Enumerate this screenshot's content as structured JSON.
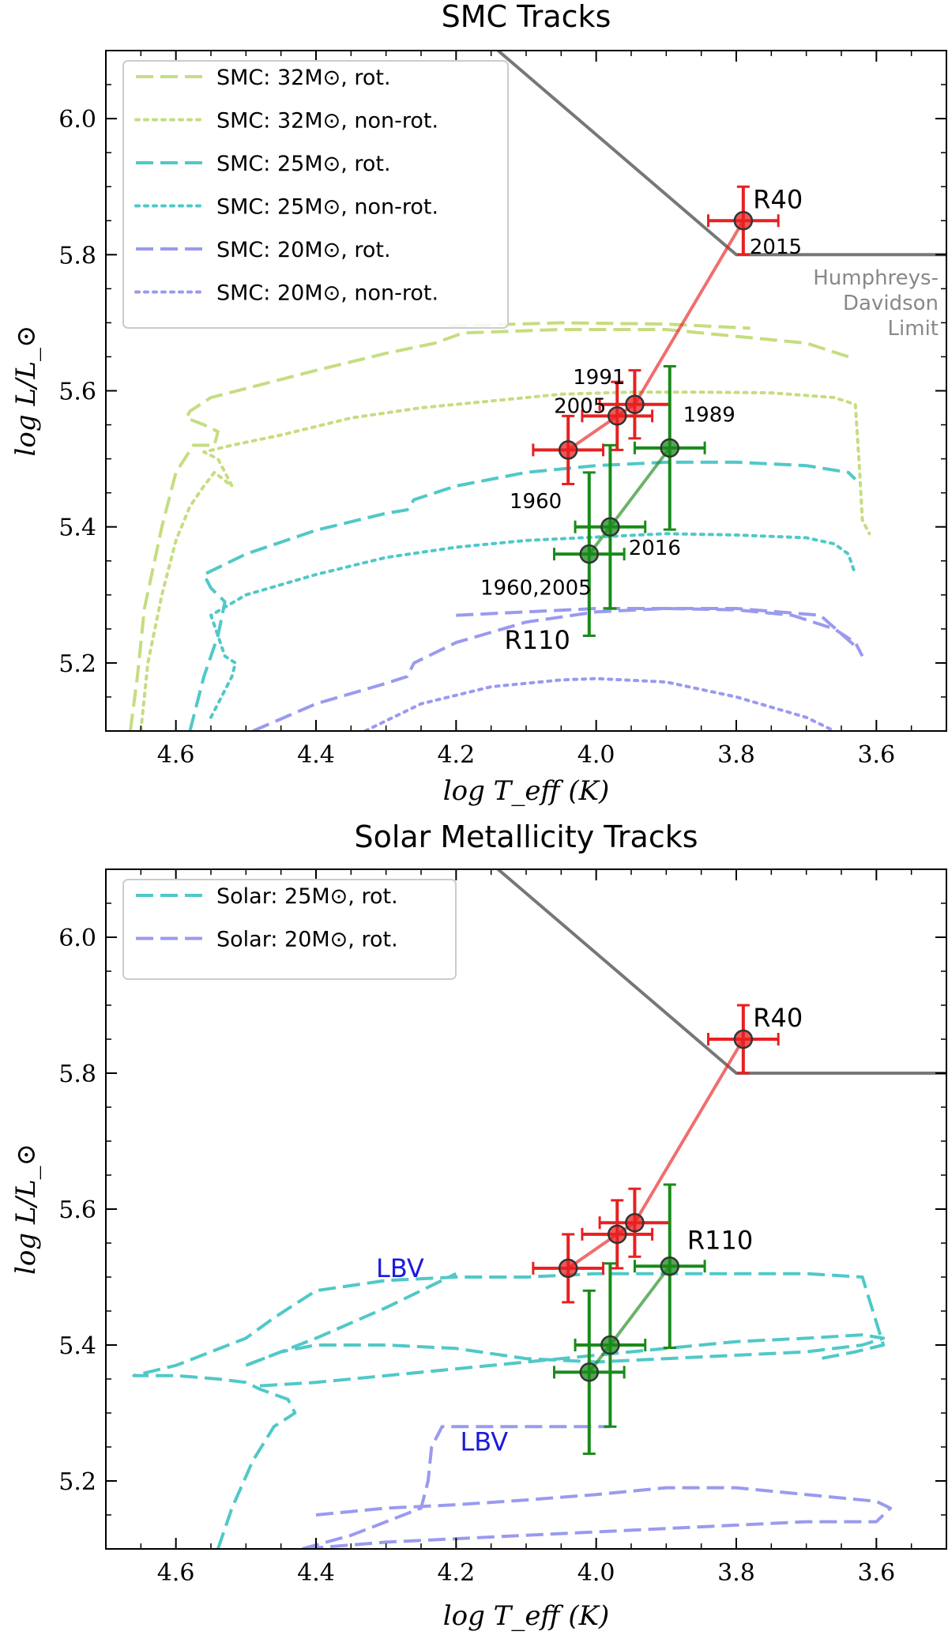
{
  "chart_data": [
    {
      "type": "line",
      "title": "SMC Tracks",
      "xlabel": "log T_eff (K)",
      "ylabel": "log L/L_⊙",
      "xlim": [
        4.7,
        3.5
      ],
      "ylim": [
        5.1,
        6.1
      ],
      "x_ticks": [
        "4.6",
        "4.4",
        "4.2",
        "4.0",
        "3.8",
        "3.6"
      ],
      "y_ticks": [
        "5.2",
        "5.4",
        "5.6",
        "5.8",
        "6.0"
      ],
      "legend": {
        "position": "top-left",
        "entries": [
          {
            "label": "SMC: 32M⊙, rot.",
            "color": "#c5dd80",
            "dash": "dashed"
          },
          {
            "label": "SMC: 32M⊙, non-rot.",
            "color": "#c5dd80",
            "dash": "dotted"
          },
          {
            "label": "SMC: 25M⊙, rot.",
            "color": "#50c8c8",
            "dash": "dashed"
          },
          {
            "label": "SMC: 25M⊙, non-rot.",
            "color": "#50c8c8",
            "dash": "dotted"
          },
          {
            "label": "SMC: 20M⊙, rot.",
            "color": "#9a9af0",
            "dash": "dashed"
          },
          {
            "label": "SMC: 20M⊙, non-rot.",
            "color": "#9a9af0",
            "dash": "dotted"
          }
        ]
      },
      "hd_limit": {
        "label_lines": [
          "Humphreys-",
          "Davidson",
          "Limit"
        ],
        "x": [
          4.14,
          3.8,
          3.5
        ],
        "y": [
          6.1,
          5.8,
          5.8
        ],
        "color": "#777777"
      },
      "tracks": [
        {
          "name": "SMC 32 rot",
          "color": "#c5dd80",
          "dash": "dashed",
          "x": [
            4.665,
            4.655,
            4.645,
            4.62,
            4.6,
            4.575,
            4.545,
            4.54,
            4.56,
            4.585,
            4.58,
            4.55,
            4.4,
            4.3,
            4.23,
            4.19,
            4.05,
            3.9,
            3.8,
            3.7,
            3.64
          ],
          "y": [
            5.1,
            5.18,
            5.28,
            5.4,
            5.48,
            5.52,
            5.52,
            5.54,
            5.55,
            5.56,
            5.57,
            5.59,
            5.63,
            5.655,
            5.67,
            5.685,
            5.69,
            5.69,
            5.68,
            5.67,
            5.65
          ]
        },
        {
          "name": "SMC 32 rot (upper)",
          "color": "#c5dd80",
          "dash": "dashed",
          "x": [
            4.21,
            4.05,
            3.9,
            3.78
          ],
          "y": [
            5.695,
            5.7,
            5.698,
            5.692
          ]
        },
        {
          "name": "SMC 32 non-rot",
          "color": "#c5dd80",
          "dash": "dotted",
          "x": [
            4.65,
            4.64,
            4.62,
            4.6,
            4.58,
            4.56,
            4.545,
            4.52,
            4.54,
            4.56,
            4.52,
            4.45,
            4.35,
            4.25,
            4.15,
            4.05,
            3.95,
            3.85,
            3.75,
            3.66,
            3.63,
            3.625,
            3.62,
            3.61
          ],
          "y": [
            5.1,
            5.2,
            5.3,
            5.38,
            5.43,
            5.46,
            5.48,
            5.46,
            5.5,
            5.51,
            5.52,
            5.535,
            5.56,
            5.575,
            5.585,
            5.595,
            5.598,
            5.598,
            5.597,
            5.59,
            5.58,
            5.5,
            5.41,
            5.39
          ]
        },
        {
          "name": "SMC 25 rot",
          "color": "#50c8c8",
          "dash": "dashed",
          "x": [
            4.58,
            4.56,
            4.54,
            4.53,
            4.55,
            4.56,
            4.5,
            4.4,
            4.3,
            4.27,
            4.26,
            4.2,
            4.1,
            4.0,
            3.9,
            3.8,
            3.7,
            3.64,
            3.63
          ],
          "y": [
            5.1,
            5.18,
            5.24,
            5.29,
            5.31,
            5.33,
            5.36,
            5.395,
            5.42,
            5.425,
            5.44,
            5.46,
            5.48,
            5.49,
            5.495,
            5.495,
            5.49,
            5.48,
            5.47
          ]
        },
        {
          "name": "SMC 25 non-rot",
          "color": "#50c8c8",
          "dash": "dotted",
          "x": [
            4.55,
            4.52,
            4.515,
            4.53,
            4.54,
            4.55,
            4.5,
            4.4,
            4.3,
            4.2,
            4.1,
            4.0,
            3.9,
            3.8,
            3.7,
            3.66,
            3.64,
            3.63
          ],
          "y": [
            5.12,
            5.18,
            5.2,
            5.21,
            5.24,
            5.27,
            5.3,
            5.33,
            5.355,
            5.37,
            5.38,
            5.385,
            5.39,
            5.388,
            5.384,
            5.375,
            5.36,
            5.33
          ]
        },
        {
          "name": "SMC 20 rot",
          "color": "#9a9af0",
          "dash": "dashed",
          "x": [
            4.49,
            4.4,
            4.3,
            4.27,
            4.26,
            4.2,
            4.1,
            4.0,
            3.9,
            3.8,
            3.72,
            3.66,
            3.63,
            3.62
          ],
          "y": [
            5.1,
            5.14,
            5.17,
            5.18,
            5.2,
            5.23,
            5.26,
            5.275,
            5.28,
            5.278,
            5.27,
            5.25,
            5.23,
            5.21
          ]
        },
        {
          "name": "SMC 20 rot (upper)",
          "color": "#9a9af0",
          "dash": "dashed",
          "x": [
            4.2,
            4.0,
            3.8,
            3.68,
            3.625
          ],
          "y": [
            5.27,
            5.28,
            5.28,
            5.27,
            5.22
          ]
        },
        {
          "name": "SMC 20 non-rot",
          "color": "#9a9af0",
          "dash": "dotted",
          "x": [
            4.33,
            4.25,
            4.15,
            4.05,
            4.0,
            3.9,
            3.8,
            3.7,
            3.66
          ],
          "y": [
            5.1,
            5.14,
            5.165,
            5.175,
            5.177,
            5.172,
            5.15,
            5.12,
            5.1
          ]
        }
      ],
      "stars": [
        {
          "name": "R40",
          "color": "#e82020",
          "label": "R40",
          "epochs": [
            "1960",
            "2005",
            "1991",
            "2015"
          ],
          "x": [
            4.04,
            3.97,
            3.945,
            3.79
          ],
          "y": [
            5.513,
            5.563,
            5.58,
            5.85
          ],
          "xerr": [
            0.05,
            0.05,
            0.05,
            0.05
          ],
          "yerr": [
            0.05,
            0.05,
            0.05,
            0.05
          ]
        },
        {
          "name": "R110",
          "color": "#1a8a1a",
          "label": "R110",
          "epochs": [
            "1960,2005",
            "2016",
            "1989"
          ],
          "x": [
            4.01,
            3.98,
            3.895
          ],
          "y": [
            5.36,
            5.4,
            5.516
          ],
          "xerr": [
            0.05,
            0.05,
            0.05
          ],
          "yerr": [
            0.12,
            0.12,
            0.12
          ]
        }
      ]
    },
    {
      "type": "line",
      "title": "Solar Metallicity Tracks",
      "xlabel": "log T_eff (K)",
      "ylabel": "log L/L_⊙",
      "xlim": [
        4.7,
        3.5
      ],
      "ylim": [
        5.1,
        6.1
      ],
      "x_ticks": [
        "4.6",
        "4.4",
        "4.2",
        "4.0",
        "3.8",
        "3.6"
      ],
      "y_ticks": [
        "5.2",
        "5.4",
        "5.6",
        "5.8",
        "6.0"
      ],
      "legend": {
        "position": "top-left",
        "entries": [
          {
            "label": "Solar: 25M⊙, rot.",
            "color": "#50c8c8",
            "dash": "dashed"
          },
          {
            "label": "Solar: 20M⊙, rot.",
            "color": "#9a9af0",
            "dash": "dashed"
          }
        ]
      },
      "hd_limit": {
        "x": [
          4.14,
          3.8,
          3.5
        ],
        "y": [
          6.1,
          5.8,
          5.8
        ],
        "color": "#777777"
      },
      "annotations": [
        {
          "text": "LBV",
          "x": 4.28,
          "y": 5.5,
          "color": "#1a1adb"
        },
        {
          "text": "LBV",
          "x": 4.16,
          "y": 5.245,
          "color": "#1a1adb"
        }
      ],
      "tracks": [
        {
          "name": "Solar 25 rot",
          "color": "#50c8c8",
          "dash": "dashed",
          "x": [
            4.54,
            4.52,
            4.49,
            4.46,
            4.43,
            4.44,
            4.48,
            4.5,
            4.54,
            4.6,
            4.66,
            4.6,
            4.5,
            4.46,
            4.43,
            4.4,
            4.3,
            4.2,
            4.1,
            4.0,
            3.9,
            3.8,
            3.7,
            3.62,
            3.59,
            3.63,
            3.68
          ],
          "y": [
            5.1,
            5.16,
            5.23,
            5.28,
            5.3,
            5.32,
            5.335,
            5.345,
            5.35,
            5.355,
            5.355,
            5.37,
            5.41,
            5.44,
            5.46,
            5.48,
            5.495,
            5.5,
            5.5,
            5.505,
            5.505,
            5.505,
            5.505,
            5.5,
            5.4,
            5.39,
            5.38
          ]
        },
        {
          "name": "Solar 25 rot (loop)",
          "color": "#50c8c8",
          "dash": "dashed",
          "x": [
            4.48,
            4.4,
            4.3,
            4.2,
            4.1,
            4.0,
            3.9,
            3.8,
            3.7,
            3.62,
            3.59,
            3.62,
            3.7,
            3.8,
            3.9,
            4.0,
            4.1,
            4.2,
            4.3,
            4.4,
            4.45,
            4.5
          ],
          "y": [
            5.34,
            5.345,
            5.355,
            5.365,
            5.375,
            5.385,
            5.395,
            5.405,
            5.41,
            5.415,
            5.41,
            5.4,
            5.39,
            5.385,
            5.38,
            5.375,
            5.38,
            5.395,
            5.4,
            5.4,
            5.39,
            5.37
          ]
        },
        {
          "name": "Solar 25 rot (LBV tail)",
          "color": "#50c8c8",
          "dash": "dashed",
          "x": [
            4.5,
            4.4,
            4.3,
            4.2
          ],
          "y": [
            5.37,
            5.41,
            5.455,
            5.505
          ]
        },
        {
          "name": "Solar 20 rot",
          "color": "#9a9af0",
          "dash": "dashed",
          "x": [
            4.42,
            4.35,
            4.3,
            4.25,
            4.24,
            4.235,
            4.22,
            4.1,
            4.0,
            3.98
          ],
          "y": [
            5.1,
            5.12,
            5.14,
            5.16,
            5.2,
            5.25,
            5.28,
            5.28,
            5.28,
            5.28
          ]
        },
        {
          "name": "Solar 20 rot (loop)",
          "color": "#9a9af0",
          "dash": "dashed",
          "x": [
            4.4,
            4.3,
            4.2,
            4.1,
            4.0,
            3.9,
            3.8,
            3.7,
            3.6,
            3.58,
            3.6,
            3.7,
            3.8,
            3.9,
            4.0,
            4.1,
            4.2,
            4.3,
            4.42
          ],
          "y": [
            5.15,
            5.16,
            5.165,
            5.172,
            5.18,
            5.19,
            5.19,
            5.18,
            5.17,
            5.16,
            5.14,
            5.14,
            5.135,
            5.13,
            5.125,
            5.12,
            5.115,
            5.11,
            5.1
          ]
        }
      ],
      "stars": [
        {
          "name": "R40",
          "color": "#e82020",
          "label": "R40",
          "x": [
            4.04,
            3.97,
            3.945,
            3.79
          ],
          "y": [
            5.513,
            5.563,
            5.58,
            5.85
          ],
          "xerr": [
            0.05,
            0.05,
            0.05,
            0.05
          ],
          "yerr": [
            0.05,
            0.05,
            0.05,
            0.05
          ]
        },
        {
          "name": "R110",
          "color": "#1a8a1a",
          "label": "R110",
          "x": [
            4.01,
            3.98,
            3.895
          ],
          "y": [
            5.36,
            5.4,
            5.516
          ],
          "xerr": [
            0.05,
            0.05,
            0.05
          ],
          "yerr": [
            0.12,
            0.12,
            0.12
          ]
        }
      ]
    }
  ]
}
